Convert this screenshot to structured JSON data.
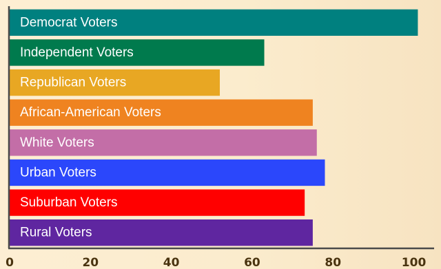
{
  "chart_data": {
    "type": "bar",
    "orientation": "horizontal",
    "title": "",
    "xlabel": "",
    "ylabel": "",
    "categories": [
      "Democrat Voters",
      "Independent Voters",
      "Republican Voters",
      "African-American Voters",
      "White Voters",
      "Urban Voters",
      "Suburban Voters",
      "Rural Voters"
    ],
    "values": [
      101,
      63,
      52,
      75,
      76,
      78,
      73,
      75
    ],
    "colors": [
      "#00807f",
      "#007a4d",
      "#e8a723",
      "#ef8320",
      "#c36ea7",
      "#2b47fb",
      "#ff0000",
      "#5f26a0"
    ],
    "xlim": [
      0,
      104
    ],
    "xticks": [
      "0",
      "20",
      "40",
      "60",
      "80",
      "100"
    ],
    "xtick_values": [
      0,
      20,
      40,
      60,
      80,
      100
    ],
    "grid": false,
    "legend": "none",
    "bar_label_position": "inside-left"
  }
}
